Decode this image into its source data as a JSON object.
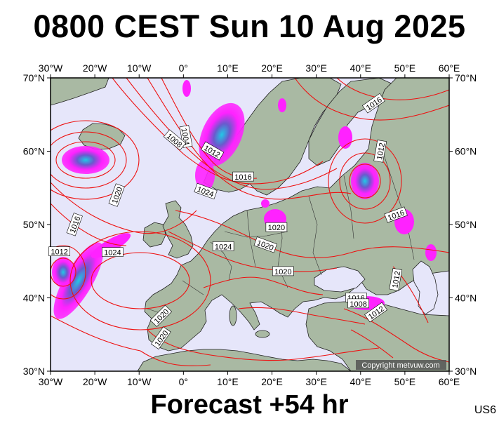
{
  "header": {
    "title": "0800 CEST Sun 10 Aug 2025"
  },
  "footer": {
    "forecast": "Forecast +54 hr",
    "model": "US6"
  },
  "map": {
    "extent": {
      "lon": [
        -30,
        60
      ],
      "lat": [
        30,
        70
      ]
    },
    "lon_labels": [
      "30°W",
      "20°W",
      "10°W",
      "0°",
      "10°E",
      "20°E",
      "30°E",
      "40°E",
      "50°E",
      "60°E"
    ],
    "lat_labels": [
      "70°N",
      "60°N",
      "50°N",
      "40°N",
      "30°N"
    ],
    "isobar_labels": [
      {
        "text": "1004",
        "lon": 0.5,
        "lat": 62.0,
        "rot": 80
      },
      {
        "text": "1008",
        "lon": -2.0,
        "lat": 61.5,
        "rot": 40
      },
      {
        "text": "1012",
        "lon": 6.5,
        "lat": 60.0,
        "rot": 30
      },
      {
        "text": "1016",
        "lon": 13.5,
        "lat": 56.5,
        "rot": 0
      },
      {
        "text": "1024",
        "lon": 5.0,
        "lat": 54.5,
        "rot": 20
      },
      {
        "text": "1020",
        "lon": -15.0,
        "lat": 54.0,
        "rot": -70
      },
      {
        "text": "1016",
        "lon": -24.5,
        "lat": 50.0,
        "rot": -70
      },
      {
        "text": "1012",
        "lon": -28.0,
        "lat": 46.3,
        "rot": 0
      },
      {
        "text": "1024",
        "lon": -16.0,
        "lat": 46.2,
        "rot": 0
      },
      {
        "text": "1016",
        "lon": 43.0,
        "lat": 66.5,
        "rot": -35
      },
      {
        "text": "1012",
        "lon": 44.5,
        "lat": 60.0,
        "rot": -80
      },
      {
        "text": "1016",
        "lon": 48.0,
        "lat": 51.3,
        "rot": -20
      },
      {
        "text": "1020",
        "lon": 21.0,
        "lat": 49.6,
        "rot": 0
      },
      {
        "text": "1024",
        "lon": 9.0,
        "lat": 47.0,
        "rot": 0
      },
      {
        "text": "1020",
        "lon": 18.5,
        "lat": 47.2,
        "rot": 20
      },
      {
        "text": "1020",
        "lon": 22.5,
        "lat": 43.6,
        "rot": 0
      },
      {
        "text": "1016",
        "lon": 39.0,
        "lat": 40.0,
        "rot": 0
      },
      {
        "text": "1008",
        "lon": 39.5,
        "lat": 39.2,
        "rot": 0
      },
      {
        "text": "1012",
        "lon": 48.0,
        "lat": 42.5,
        "rot": -80
      },
      {
        "text": "1012",
        "lon": 43.5,
        "lat": 38.0,
        "rot": -35
      },
      {
        "text": "1020",
        "lon": -5.0,
        "lat": 37.5,
        "rot": -45
      },
      {
        "text": "1020",
        "lon": -5.0,
        "lat": 34.5,
        "rot": -55
      }
    ],
    "credit": "Copyright metvuw.com",
    "colors": {
      "ocean": "#e6e6fa",
      "land": "#a9b9a3",
      "isobar": "#ee1111",
      "precip_light": "#ff22ff",
      "precip_mid": "#8a2be2",
      "precip_heavy": "#22c8e6"
    }
  }
}
